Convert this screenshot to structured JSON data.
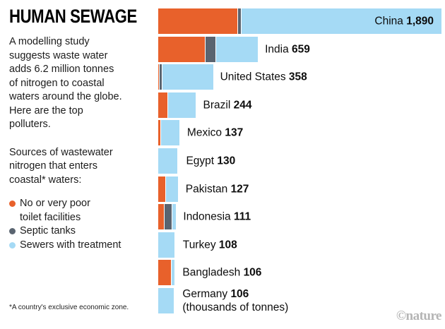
{
  "header": {
    "title": "HUMAN SEWAGE"
  },
  "intro": "A modelling study\nsuggests waste water\nadds 6.2 million tonnes\nof nitrogen to coastal\nwaters around the globe.\nHere are the top\npolluters.",
  "sources_label": "Sources of wastewater\nnitrogen that enters\ncoastal* waters:",
  "legend": {
    "items": [
      {
        "key": "no_toilet",
        "label": "No or very poor\ntoilet facilities",
        "color": "#E8612B"
      },
      {
        "key": "septic",
        "label": "Septic tanks",
        "color": "#5A6470"
      },
      {
        "key": "sewer",
        "label": "Sewers with treatment",
        "color": "#A5DAF5"
      }
    ]
  },
  "footnote": "*A country's exclusive economic zone.",
  "watermark": "©nature",
  "colors": {
    "no_toilet": "#E8612B",
    "septic": "#5A6470",
    "sewer": "#A5DAF5",
    "text": "#0d0d0d",
    "watermark": "#B5B5B5"
  },
  "chart_data": {
    "type": "bar",
    "orientation": "horizontal",
    "stacked": true,
    "title": "HUMAN SEWAGE",
    "unit_note": "(thousands of tonnes)",
    "xlim": [
      0,
      1890
    ],
    "grid": false,
    "legend_position": "left",
    "series_keys": [
      "no_toilet",
      "septic",
      "sewer"
    ],
    "series_names": [
      "No or very poor toilet facilities",
      "Septic tanks",
      "Sewers with treatment"
    ],
    "bars": [
      {
        "country": "China",
        "total": 1890,
        "display_total": "1,890",
        "label_inside": true,
        "segments": {
          "no_toilet": 530,
          "septic": 20,
          "sewer": 1340
        }
      },
      {
        "country": "India",
        "total": 659,
        "display_total": "659",
        "segments": {
          "no_toilet": 312,
          "septic": 66,
          "sewer": 281
        }
      },
      {
        "country": "United States",
        "total": 358,
        "display_total": "358",
        "segments": {
          "no_toilet": 7,
          "septic": 10,
          "sewer": 341
        }
      },
      {
        "country": "Brazil",
        "total": 244,
        "display_total": "244",
        "segments": {
          "no_toilet": 60,
          "septic": 0,
          "sewer": 184
        }
      },
      {
        "country": "Mexico",
        "total": 137,
        "display_total": "137",
        "segments": {
          "no_toilet": 12,
          "septic": 0,
          "sewer": 125
        }
      },
      {
        "country": "Egypt",
        "total": 130,
        "display_total": "130",
        "segments": {
          "no_toilet": 0,
          "septic": 0,
          "sewer": 130
        }
      },
      {
        "country": "Pakistan",
        "total": 127,
        "display_total": "127",
        "segments": {
          "no_toilet": 45,
          "septic": 0,
          "sewer": 82
        }
      },
      {
        "country": "Indonesia",
        "total": 111,
        "display_total": "111",
        "segments": {
          "no_toilet": 40,
          "septic": 45,
          "sewer": 26
        }
      },
      {
        "country": "Turkey",
        "total": 108,
        "display_total": "108",
        "segments": {
          "no_toilet": 0,
          "septic": 0,
          "sewer": 108
        }
      },
      {
        "country": "Bangladesh",
        "total": 106,
        "display_total": "106",
        "segments": {
          "no_toilet": 85,
          "septic": 0,
          "sewer": 21
        }
      },
      {
        "country": "Germany",
        "total": 106,
        "display_total": "106",
        "note": "(thousands of tonnes)",
        "segments": {
          "no_toilet": 0,
          "septic": 0,
          "sewer": 106
        }
      }
    ]
  }
}
